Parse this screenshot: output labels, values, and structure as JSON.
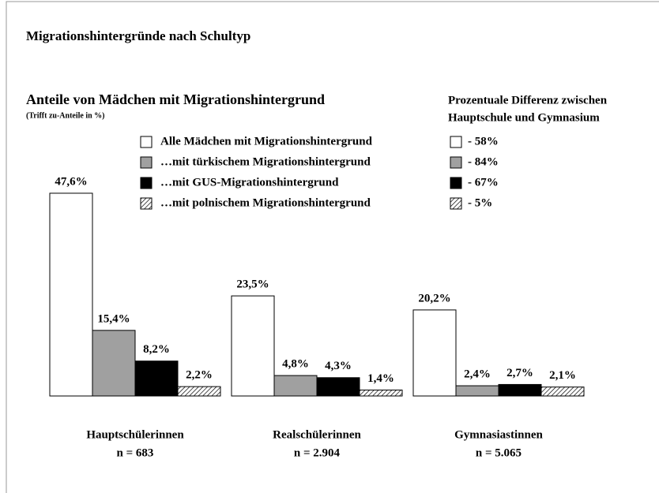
{
  "chart_data": {
    "type": "bar",
    "title": "Migrationshintergründe nach Schultyp",
    "subtitle": "Anteile von Mädchen mit Migrationshintergrund",
    "note": "(Trifft zu-Anteile in %)",
    "difference_title": [
      "Prozentuale Differenz zwischen",
      "Hauptschule und Gymnasium"
    ],
    "categories": [
      "Hauptschülerinnen",
      "Realschülerinnen",
      "Gymnasiastinnen"
    ],
    "category_n": [
      "n = 683",
      "n = 2.904",
      "n = 5.065"
    ],
    "ylim": [
      0,
      50
    ],
    "series": [
      {
        "name": "Alle Mädchen mit Migrationshintergrund",
        "color": "#ffffff",
        "difference": "- 58%",
        "values": [
          47.6,
          23.5,
          20.2
        ],
        "value_labels": [
          "47,6%",
          "23,5%",
          "20,2%"
        ]
      },
      {
        "name": "…mit türkischem Migrationshintergrund",
        "color": "#a0a0a0",
        "difference": "- 84%",
        "values": [
          15.4,
          4.8,
          2.4
        ],
        "value_labels": [
          "15,4%",
          "4,8%",
          "2,4%"
        ]
      },
      {
        "name": "…mit GUS-Migrationshintergrund",
        "color": "#000000",
        "difference": "- 67%",
        "values": [
          8.2,
          4.3,
          2.7
        ],
        "value_labels": [
          "8,2%",
          "4,3%",
          "2,7%"
        ]
      },
      {
        "name": "…mit polnischem Migrationshintergrund",
        "color": "#000000",
        "hatched": true,
        "difference": "- 5%",
        "values": [
          2.2,
          1.4,
          2.1
        ],
        "value_labels": [
          "2,2%",
          "1,4%",
          "2,1%"
        ]
      }
    ]
  }
}
